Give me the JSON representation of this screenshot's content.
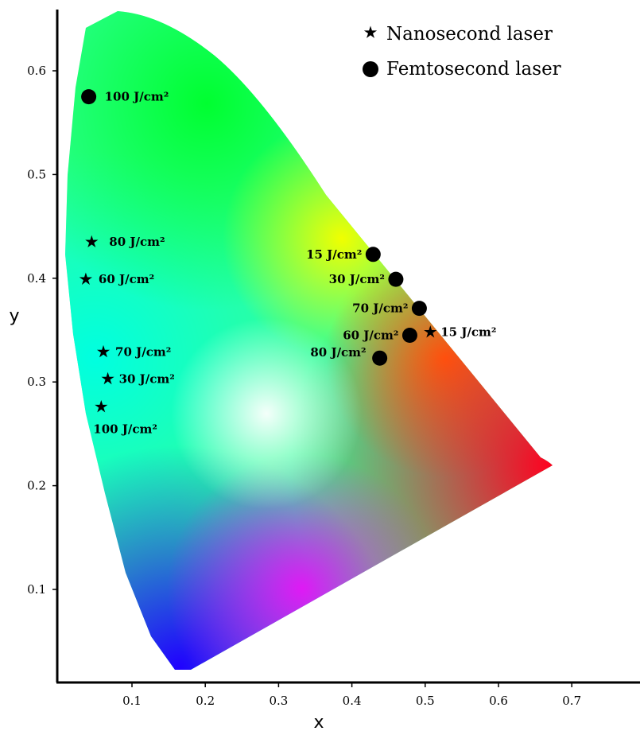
{
  "chart_data": {
    "type": "scatter",
    "title": "",
    "xlabel": "x",
    "ylabel": "y",
    "xlim": [
      0.0,
      0.75
    ],
    "ylim": [
      0.0,
      0.65
    ],
    "x_ticks": [
      "0.1",
      "0.2",
      "0.3",
      "0.4",
      "0.5",
      "0.6",
      "0.7"
    ],
    "y_ticks": [
      "0.1",
      "0.2",
      "0.3",
      "0.4",
      "0.5",
      "0.6"
    ],
    "grid": false,
    "legend_position": "top-right",
    "background": "CIE 1931 chromaticity diagram",
    "series": [
      {
        "name": "Nanosecond laser",
        "marker": "star",
        "color": "#000000",
        "points": [
          {
            "x": 0.045,
            "y": 0.435,
            "label": "80 J/cm²"
          },
          {
            "x": 0.037,
            "y": 0.399,
            "label": "60 J/cm²"
          },
          {
            "x": 0.061,
            "y": 0.329,
            "label": "70 J/cm²"
          },
          {
            "x": 0.067,
            "y": 0.303,
            "label": "30 J/cm²"
          },
          {
            "x": 0.058,
            "y": 0.276,
            "label": "100 J/cm²"
          },
          {
            "x": 0.507,
            "y": 0.348,
            "label": "15 J/cm²"
          }
        ]
      },
      {
        "name": "Femtosecond laser",
        "marker": "circle",
        "color": "#000000",
        "points": [
          {
            "x": 0.041,
            "y": 0.575,
            "label": "100 J/cm²"
          },
          {
            "x": 0.429,
            "y": 0.423,
            "label": "15 J/cm²"
          },
          {
            "x": 0.46,
            "y": 0.399,
            "label": "30 J/cm²"
          },
          {
            "x": 0.492,
            "y": 0.371,
            "label": "70 J/cm²"
          },
          {
            "x": 0.479,
            "y": 0.345,
            "label": "60 J/cm²"
          },
          {
            "x": 0.438,
            "y": 0.323,
            "label": "80 J/cm²"
          }
        ]
      }
    ]
  }
}
